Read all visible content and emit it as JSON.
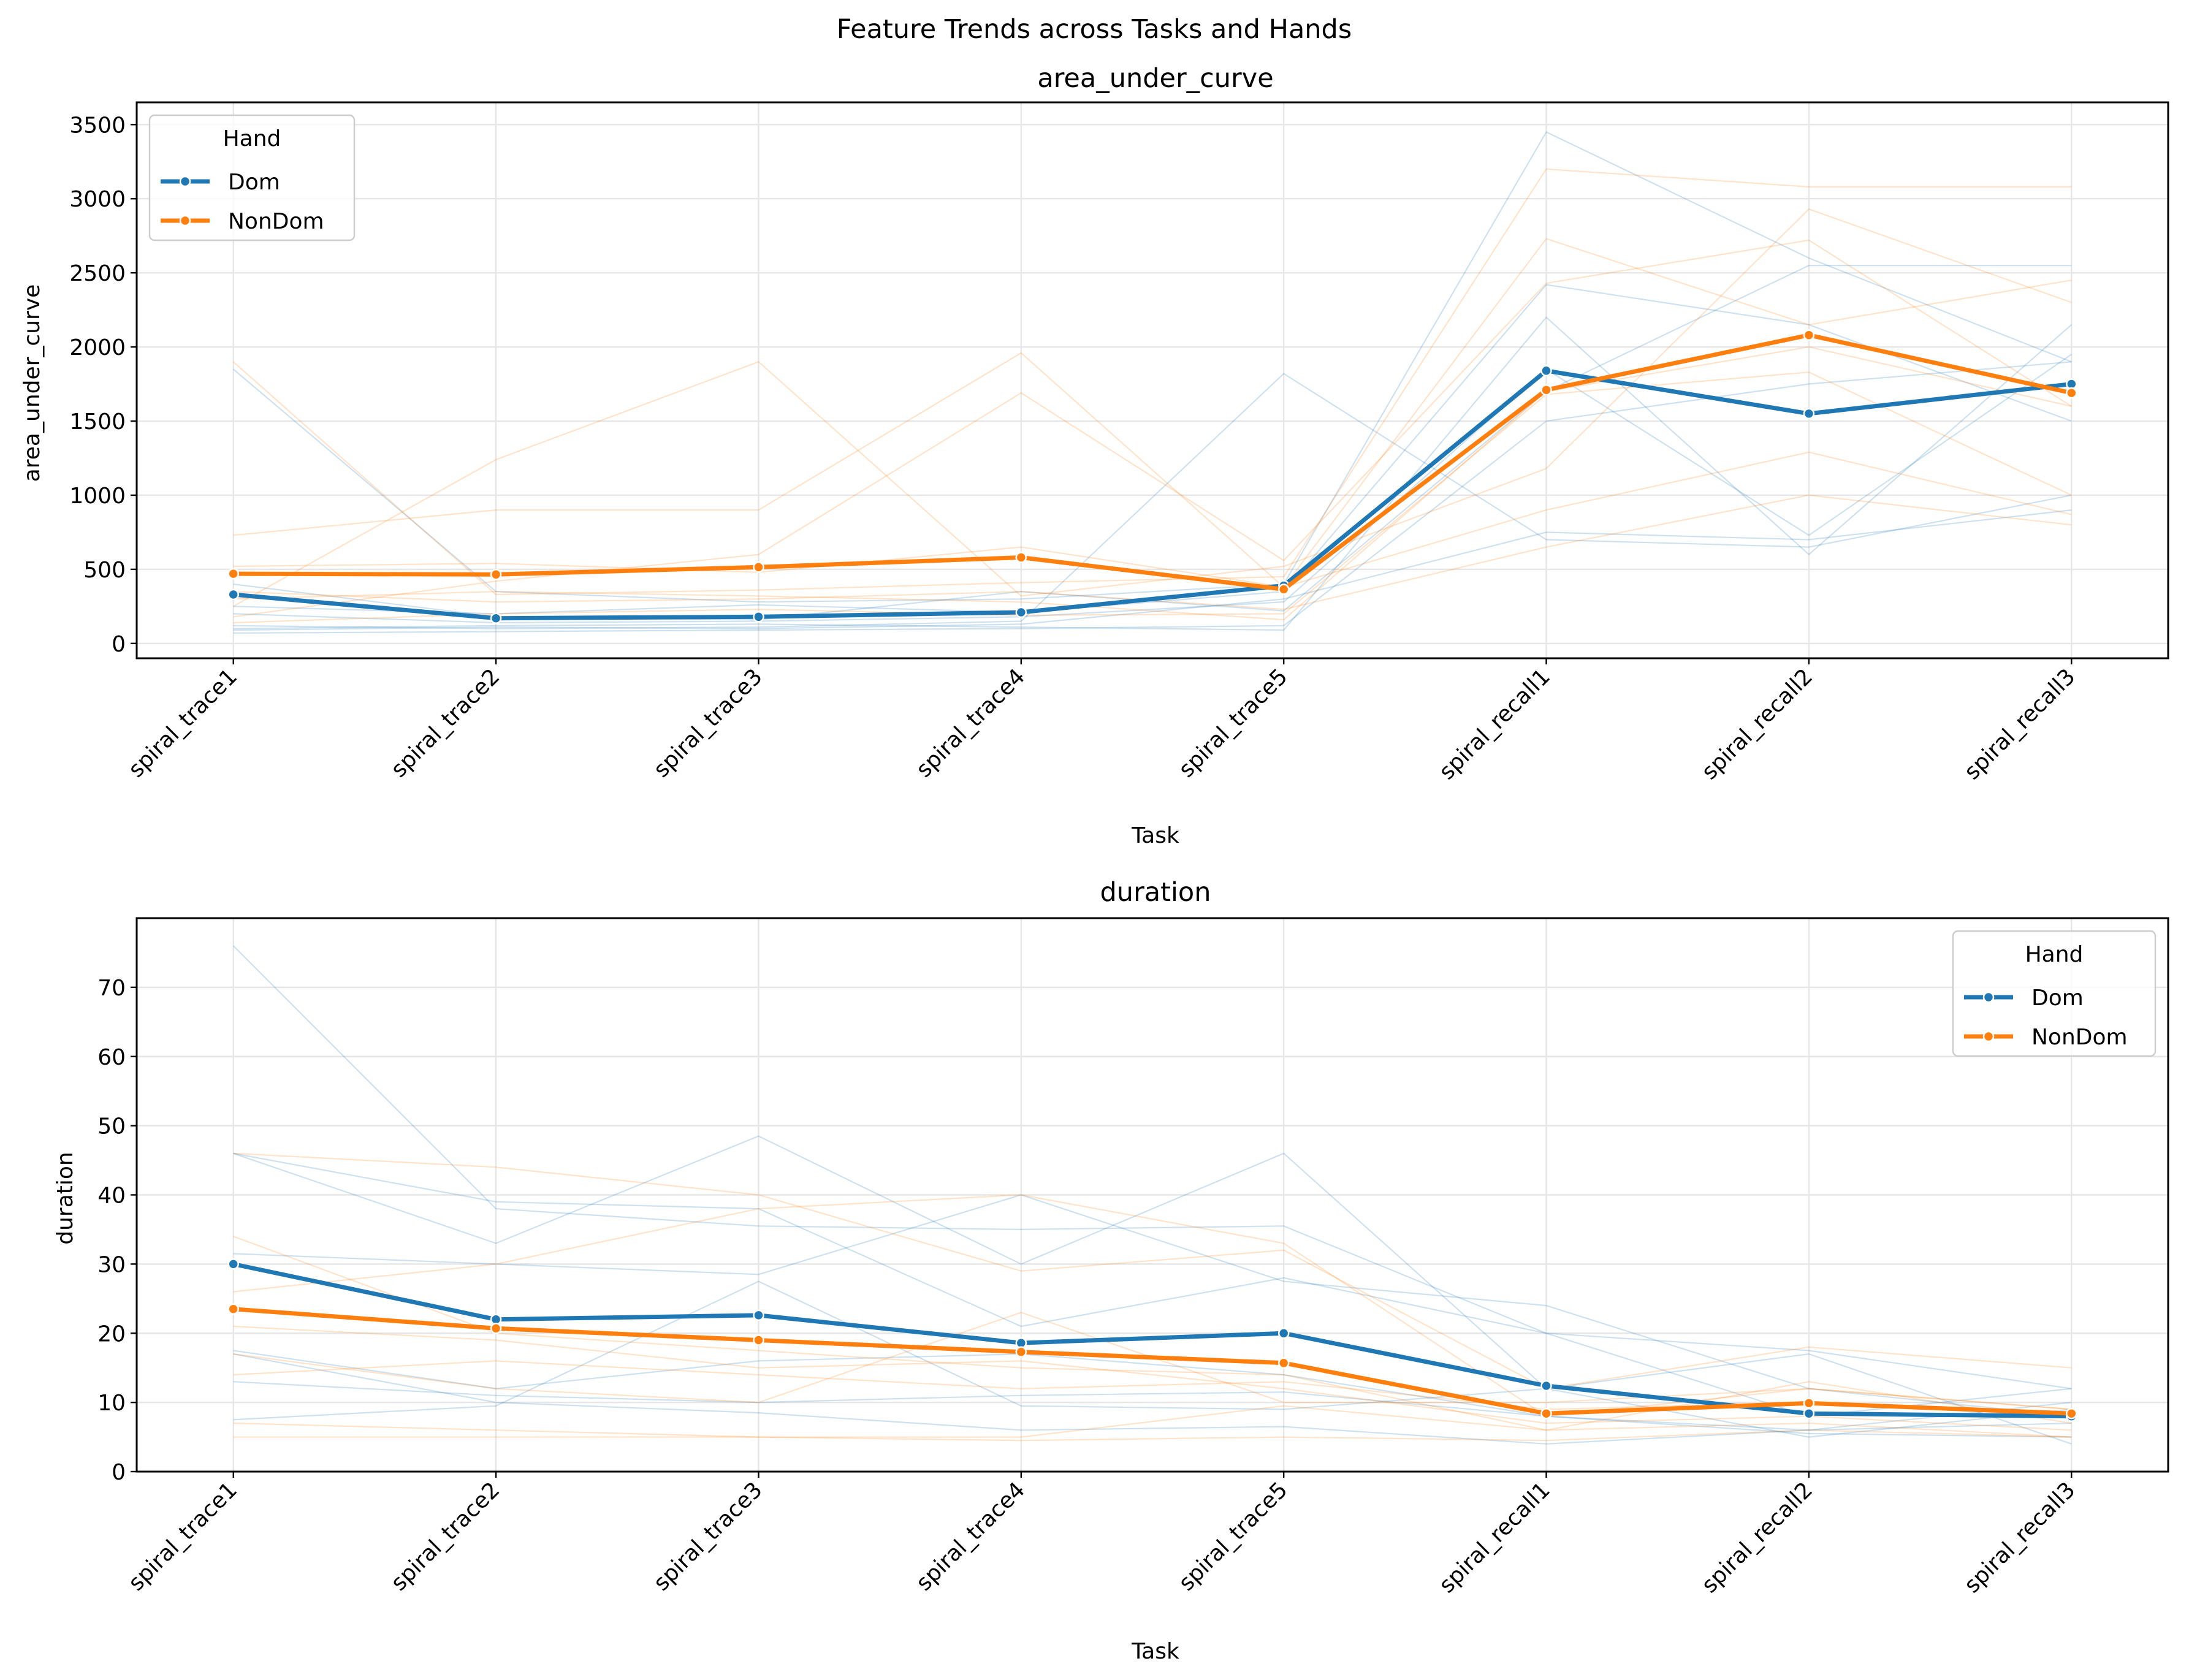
{
  "figure": {
    "suptitle": "Feature Trends across Tasks and Hands"
  },
  "colors": {
    "Dom": "#1f77b4",
    "NonDom": "#ff7f0e"
  },
  "chart_data": [
    {
      "type": "line",
      "title": "area_under_curve",
      "xlabel": "Task",
      "ylabel": "area_under_curve",
      "categories": [
        "spiral_trace1",
        "spiral_trace2",
        "spiral_trace3",
        "spiral_trace4",
        "spiral_trace5",
        "spiral_recall1",
        "spiral_recall2",
        "spiral_recall3"
      ],
      "ylim": [
        -100,
        3650
      ],
      "yticks": [
        0,
        500,
        1000,
        1500,
        2000,
        2500,
        3000,
        3500
      ],
      "grid": true,
      "legend": {
        "title": "Hand",
        "placement": "upper left",
        "entries": [
          "Dom",
          "NonDom"
        ]
      },
      "series": [
        {
          "name": "Dom",
          "values": [
            330,
            170,
            180,
            210,
            390,
            1840,
            1550,
            1750
          ]
        },
        {
          "name": "NonDom",
          "values": [
            470,
            465,
            515,
            580,
            365,
            1710,
            2080,
            1690
          ]
        }
      ],
      "background_series": {
        "Dom": [
          [
            1850,
            350,
            280,
            300,
            400,
            3450,
            2600,
            1900
          ],
          [
            70,
            80,
            90,
            100,
            120,
            1500,
            1750,
            1900
          ],
          [
            120,
            100,
            110,
            150,
            1820,
            700,
            650,
            1000
          ],
          [
            250,
            200,
            260,
            210,
            350,
            2420,
            2150,
            1500
          ],
          [
            200,
            140,
            150,
            180,
            280,
            1850,
            730,
            1950
          ],
          [
            100,
            120,
            130,
            110,
            90,
            2200,
            600,
            2150
          ],
          [
            400,
            180,
            160,
            350,
            220,
            1700,
            2550,
            2550
          ],
          [
            90,
            110,
            100,
            130,
            300,
            750,
            700,
            900
          ]
        ],
        "NonDom": [
          [
            1900,
            330,
            360,
            410,
            450,
            3200,
            3080,
            3080
          ],
          [
            730,
            900,
            900,
            1960,
            380,
            2730,
            2150,
            2450
          ],
          [
            250,
            1240,
            1900,
            320,
            520,
            1180,
            2930,
            2300
          ],
          [
            180,
            420,
            600,
            1690,
            560,
            2430,
            2720,
            1600
          ],
          [
            350,
            280,
            300,
            350,
            230,
            650,
            1000,
            800
          ],
          [
            520,
            540,
            480,
            650,
            380,
            900,
            1290,
            870
          ],
          [
            140,
            200,
            230,
            190,
            200,
            1680,
            1830,
            1000
          ],
          [
            300,
            350,
            320,
            280,
            160,
            1700,
            2000,
            1600
          ]
        ]
      }
    },
    {
      "type": "line",
      "title": "duration",
      "xlabel": "Task",
      "ylabel": "duration",
      "categories": [
        "spiral_trace1",
        "spiral_trace2",
        "spiral_trace3",
        "spiral_trace4",
        "spiral_trace5",
        "spiral_recall1",
        "spiral_recall2",
        "spiral_recall3"
      ],
      "ylim": [
        0,
        80
      ],
      "yticks": [
        0,
        10,
        20,
        30,
        40,
        50,
        60,
        70
      ],
      "grid": true,
      "legend": {
        "title": "Hand",
        "placement": "upper right",
        "entries": [
          "Dom",
          "NonDom"
        ]
      },
      "series": [
        {
          "name": "Dom",
          "values": [
            30,
            22,
            22.6,
            18.6,
            20,
            12.4,
            8.4,
            8
          ]
        },
        {
          "name": "NonDom",
          "values": [
            23.5,
            20.7,
            19,
            17.3,
            15.7,
            8.4,
            9.9,
            8.4
          ]
        }
      ],
      "background_series": {
        "Dom": [
          [
            76,
            38,
            35.5,
            35,
            35.5,
            20,
            8,
            12
          ],
          [
            46,
            33,
            48.5,
            30,
            46,
            12,
            5,
            9
          ],
          [
            31.5,
            30,
            28.5,
            40,
            27.5,
            24,
            12,
            8
          ],
          [
            17,
            10,
            8.5,
            6,
            6.5,
            4,
            6,
            10
          ],
          [
            13,
            11,
            10,
            11,
            11.5,
            8,
            6,
            7
          ],
          [
            7.5,
            9.5,
            27.5,
            9.5,
            9,
            12,
            17,
            4
          ],
          [
            17.5,
            12,
            16,
            17,
            14,
            8,
            5.5,
            5
          ],
          [
            46,
            39,
            38,
            21,
            28,
            20,
            17.5,
            12
          ]
        ],
        "NonDom": [
          [
            46,
            44,
            40,
            29,
            32,
            12,
            18,
            15
          ],
          [
            34,
            20,
            17.5,
            15,
            14,
            6,
            13,
            7
          ],
          [
            26,
            30,
            38,
            40,
            33,
            8,
            12,
            9
          ],
          [
            21,
            19,
            15,
            16,
            12,
            7,
            8,
            6
          ],
          [
            17,
            12,
            10,
            23,
            10,
            10,
            12,
            9
          ],
          [
            7,
            6,
            5,
            5,
            9.5,
            6,
            7,
            5
          ],
          [
            5,
            5,
            5,
            4.5,
            5,
            4.5,
            6,
            5
          ],
          [
            14,
            16,
            14,
            12,
            13,
            9,
            10,
            8
          ]
        ]
      }
    }
  ]
}
